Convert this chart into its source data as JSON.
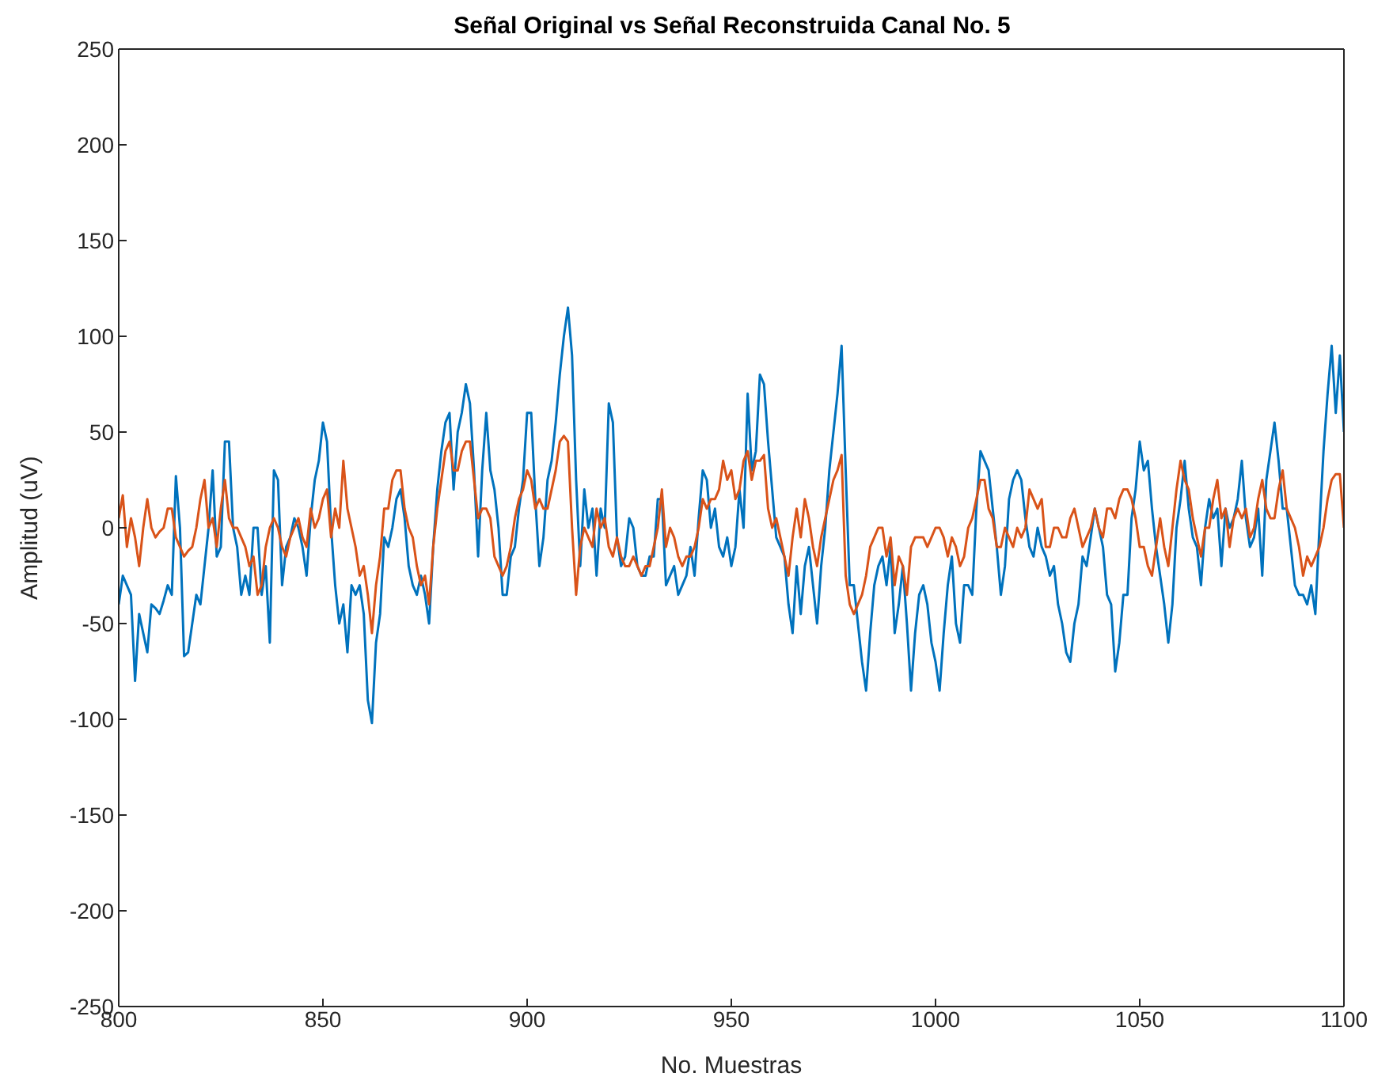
{
  "chart_data": {
    "type": "line",
    "title": "Señal Original vs Señal Reconstruida Canal No. 5",
    "xlabel": "No. Muestras",
    "ylabel": "Amplitud (uV)",
    "x": [
      800,
      801,
      802,
      803,
      804,
      805,
      806,
      807,
      808,
      809,
      810,
      811,
      812,
      813,
      814,
      815,
      816,
      817,
      818,
      819,
      820,
      821,
      822,
      823,
      824,
      825,
      826,
      827,
      828,
      829,
      830,
      831,
      832,
      833,
      834,
      835,
      836,
      837,
      838,
      839,
      840,
      841,
      842,
      843,
      844,
      845,
      846,
      847,
      848,
      849,
      850,
      851,
      852,
      853,
      854,
      855,
      856,
      857,
      858,
      859,
      860,
      861,
      862,
      863,
      864,
      865,
      866,
      867,
      868,
      869,
      870,
      871,
      872,
      873,
      874,
      875,
      876,
      877,
      878,
      879,
      880,
      881,
      882,
      883,
      884,
      885,
      886,
      887,
      888,
      889,
      890,
      891,
      892,
      893,
      894,
      895,
      896,
      897,
      898,
      899,
      900,
      901,
      902,
      903,
      904,
      905,
      906,
      907,
      908,
      909,
      910,
      911,
      912,
      913,
      914,
      915,
      916,
      917,
      918,
      919,
      920,
      921,
      922,
      923,
      924,
      925,
      926,
      927,
      928,
      929,
      930,
      931,
      932,
      933,
      934,
      935,
      936,
      937,
      938,
      939,
      940,
      941,
      942,
      943,
      944,
      945,
      946,
      947,
      948,
      949,
      950,
      951,
      952,
      953,
      954,
      955,
      956,
      957,
      958,
      959,
      960,
      961,
      962,
      963,
      964,
      965,
      966,
      967,
      968,
      969,
      970,
      971,
      972,
      973,
      974,
      975,
      976,
      977,
      978,
      979,
      980,
      981,
      982,
      983,
      984,
      985,
      986,
      987,
      988,
      989,
      990,
      991,
      992,
      993,
      994,
      995,
      996,
      997,
      998,
      999,
      1000,
      1001,
      1002,
      1003,
      1004,
      1005,
      1006,
      1007,
      1008,
      1009,
      1010,
      1011,
      1012,
      1013,
      1014,
      1015,
      1016,
      1017,
      1018,
      1019,
      1020,
      1021,
      1022,
      1023,
      1024,
      1025,
      1026,
      1027,
      1028,
      1029,
      1030,
      1031,
      1032,
      1033,
      1034,
      1035,
      1036,
      1037,
      1038,
      1039,
      1040,
      1041,
      1042,
      1043,
      1044,
      1045,
      1046,
      1047,
      1048,
      1049,
      1050,
      1051,
      1052,
      1053,
      1054,
      1055,
      1056,
      1057,
      1058,
      1059,
      1060,
      1061,
      1062,
      1063,
      1064,
      1065,
      1066,
      1067,
      1068,
      1069,
      1070,
      1071,
      1072,
      1073,
      1074,
      1075,
      1076,
      1077,
      1078,
      1079,
      1080,
      1081,
      1082,
      1083,
      1084,
      1085,
      1086,
      1087,
      1088,
      1089,
      1090,
      1091,
      1092,
      1093,
      1094,
      1095,
      1096,
      1097,
      1098,
      1099,
      1100
    ],
    "series": [
      {
        "color": "#0072bd",
        "values": [
          -40,
          -25,
          -30,
          -35,
          -80,
          -45,
          -55,
          -65,
          -40,
          -42,
          -45,
          -38,
          -30,
          -35,
          27,
          0,
          -67,
          -65,
          -50,
          -35,
          -40,
          -20,
          0,
          30,
          -15,
          -10,
          45,
          45,
          0,
          -10,
          -35,
          -25,
          -35,
          0,
          0,
          -35,
          -20,
          -60,
          30,
          25,
          -30,
          -10,
          -5,
          5,
          0,
          -10,
          -25,
          5,
          25,
          35,
          55,
          45,
          0,
          -30,
          -50,
          -40,
          -65,
          -30,
          -35,
          -30,
          -45,
          -90,
          -102,
          -60,
          -45,
          -5,
          -10,
          0,
          15,
          20,
          5,
          -20,
          -30,
          -35,
          -25,
          -35,
          -50,
          -10,
          20,
          40,
          55,
          60,
          20,
          50,
          60,
          75,
          65,
          30,
          -15,
          30,
          60,
          30,
          20,
          0,
          -35,
          -35,
          -15,
          -10,
          10,
          25,
          60,
          60,
          15,
          -20,
          -5,
          25,
          35,
          55,
          80,
          100,
          115,
          90,
          25,
          -20,
          20,
          0,
          10,
          -25,
          10,
          0,
          65,
          55,
          -5,
          -20,
          -15,
          5,
          0,
          -20,
          -25,
          -25,
          -15,
          -15,
          15,
          15,
          -30,
          -25,
          -20,
          -35,
          -30,
          -25,
          -10,
          -25,
          5,
          30,
          25,
          0,
          10,
          -10,
          -15,
          -5,
          -20,
          -10,
          20,
          0,
          70,
          30,
          40,
          80,
          75,
          45,
          20,
          -5,
          -10,
          -15,
          -40,
          -55,
          -20,
          -45,
          -20,
          -10,
          -30,
          -50,
          -20,
          0,
          30,
          50,
          70,
          95,
          30,
          -30,
          -30,
          -50,
          -70,
          -85,
          -55,
          -30,
          -20,
          -15,
          -30,
          -10,
          -55,
          -40,
          -20,
          -50,
          -85,
          -55,
          -35,
          -30,
          -40,
          -60,
          -70,
          -85,
          -55,
          -30,
          -15,
          -50,
          -60,
          -30,
          -30,
          -35,
          10,
          40,
          35,
          30,
          10,
          -10,
          -35,
          -20,
          15,
          25,
          30,
          25,
          5,
          -10,
          -15,
          0,
          -10,
          -15,
          -25,
          -20,
          -40,
          -50,
          -65,
          -70,
          -50,
          -40,
          -15,
          -20,
          -5,
          10,
          0,
          -10,
          -35,
          -40,
          -75,
          -60,
          -35,
          -35,
          5,
          20,
          45,
          30,
          35,
          10,
          -10,
          -25,
          -40,
          -60,
          -40,
          0,
          15,
          35,
          10,
          -5,
          -10,
          -30,
          0,
          15,
          5,
          10,
          -20,
          10,
          0,
          5,
          15,
          35,
          5,
          -10,
          -5,
          10,
          -25,
          25,
          40,
          55,
          35,
          10,
          10,
          -10,
          -30,
          -35,
          -35,
          -40,
          -30,
          -45,
          0,
          40,
          70,
          95,
          60,
          90,
          50
        ]
      },
      {
        "color": "#d95319",
        "values": [
          5,
          17,
          -10,
          5,
          -5,
          -20,
          0,
          15,
          0,
          -5,
          -2,
          0,
          10,
          10,
          -5,
          -10,
          -15,
          -12,
          -10,
          0,
          15,
          25,
          0,
          5,
          -10,
          10,
          25,
          5,
          0,
          0,
          -5,
          -10,
          -20,
          -15,
          -35,
          -30,
          -10,
          0,
          5,
          0,
          -10,
          -15,
          -5,
          0,
          5,
          -5,
          -10,
          10,
          0,
          5,
          15,
          20,
          -5,
          10,
          0,
          35,
          10,
          0,
          -10,
          -25,
          -20,
          -35,
          -55,
          -30,
          -15,
          10,
          10,
          25,
          30,
          30,
          10,
          0,
          -5,
          -20,
          -30,
          -25,
          -40,
          -10,
          10,
          25,
          40,
          45,
          30,
          30,
          40,
          45,
          45,
          25,
          5,
          10,
          10,
          5,
          -15,
          -20,
          -25,
          -20,
          -10,
          5,
          15,
          20,
          30,
          25,
          10,
          15,
          10,
          10,
          20,
          30,
          45,
          48,
          45,
          0,
          -35,
          -10,
          0,
          -5,
          -10,
          10,
          0,
          5,
          -10,
          -15,
          -5,
          -15,
          -20,
          -20,
          -15,
          -20,
          -25,
          -20,
          -20,
          -10,
          0,
          20,
          -10,
          0,
          -5,
          -15,
          -20,
          -15,
          -15,
          -10,
          0,
          15,
          10,
          15,
          15,
          20,
          35,
          25,
          30,
          15,
          20,
          35,
          40,
          25,
          35,
          35,
          38,
          10,
          0,
          5,
          -5,
          -15,
          -25,
          -5,
          10,
          -5,
          15,
          5,
          -10,
          -20,
          -5,
          5,
          15,
          25,
          30,
          38,
          -25,
          -40,
          -45,
          -40,
          -35,
          -25,
          -10,
          -5,
          0,
          0,
          -15,
          -5,
          -30,
          -15,
          -20,
          -35,
          -10,
          -5,
          -5,
          -5,
          -10,
          -5,
          0,
          0,
          -5,
          -15,
          -5,
          -10,
          -20,
          -15,
          0,
          5,
          15,
          25,
          25,
          10,
          5,
          -10,
          -10,
          0,
          -5,
          -10,
          0,
          -5,
          0,
          20,
          15,
          10,
          15,
          -10,
          -10,
          0,
          0,
          -5,
          -5,
          5,
          10,
          0,
          -10,
          -5,
          0,
          10,
          0,
          -5,
          10,
          10,
          5,
          15,
          20,
          20,
          15,
          5,
          -10,
          -10,
          -20,
          -25,
          -10,
          5,
          -10,
          -20,
          0,
          20,
          35,
          25,
          20,
          5,
          -5,
          -15,
          0,
          0,
          15,
          25,
          5,
          10,
          -10,
          5,
          10,
          5,
          10,
          -5,
          0,
          15,
          25,
          10,
          5,
          5,
          20,
          30,
          10,
          5,
          0,
          -10,
          -25,
          -15,
          -20,
          -15,
          -10,
          0,
          15,
          25,
          28,
          28,
          0
        ]
      }
    ],
    "xlim": [
      800,
      1100
    ],
    "xticks": [
      800,
      850,
      900,
      950,
      1000,
      1050,
      1100
    ],
    "ylim": [
      -250,
      250
    ],
    "yticks": [
      -250,
      -200,
      -150,
      -100,
      -50,
      0,
      50,
      100,
      150,
      200,
      250
    ],
    "grid": false,
    "marker": "none",
    "line_style": "solid"
  }
}
